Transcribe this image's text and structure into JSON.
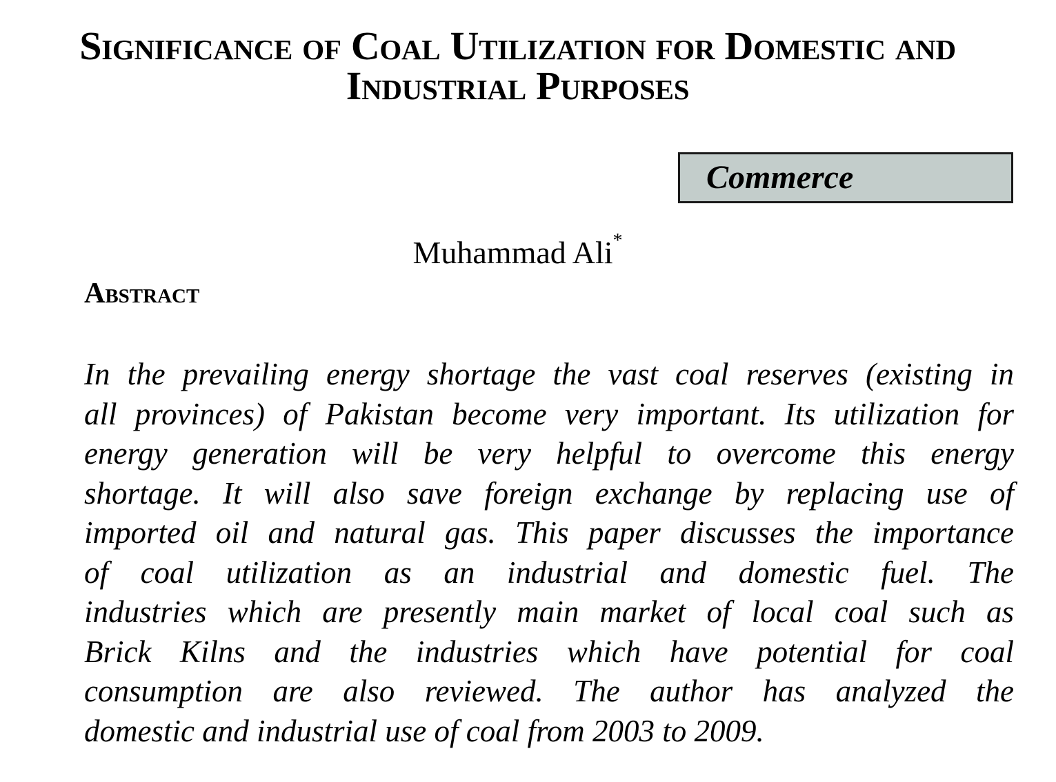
{
  "title": {
    "line1": "Significance of Coal Utilization for Domestic and",
    "line2": "Industrial Purposes"
  },
  "category": "Commerce",
  "author": {
    "name": "Muhammad Ali",
    "marker": "*"
  },
  "abstract": {
    "heading": "Abstract",
    "lines": [
      "In the prevailing energy shortage the vast coal reserves (existing in",
      "all provinces) of Pakistan become very important. Its utilization for",
      "energy generation will be very helpful to overcome this energy",
      "shortage. It will also save foreign exchange by replacing use of",
      "imported oil and natural gas. This paper discusses the importance",
      "of coal utilization as an industrial and domestic fuel. The",
      "industries which are presently main market of local coal such as",
      "Brick Kilns and the industries which have potential for coal",
      "consumption are also reviewed. The author has analyzed the",
      "domestic and industrial use of coal from 2003 to 2009."
    ]
  },
  "colors": {
    "category_box": "#c3cdcb"
  }
}
